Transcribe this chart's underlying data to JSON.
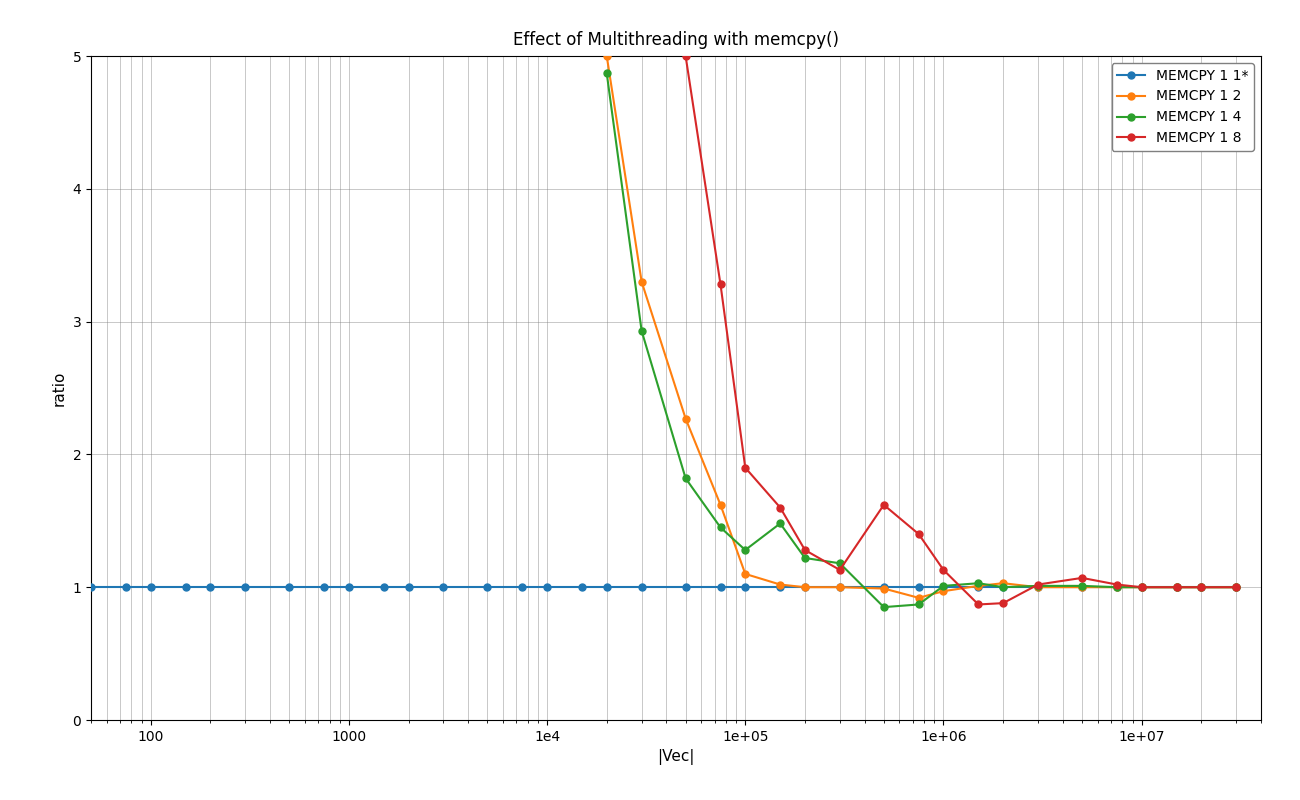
{
  "title": "Effect of Multithreading with memcpy()",
  "xlabel": "|Vec|",
  "ylabel": "ratio",
  "series": [
    {
      "label": "MEMCPY 1 1*",
      "color": "#1f77b4",
      "x": [
        50,
        75,
        100,
        150,
        200,
        300,
        500,
        750,
        1000,
        1500,
        2000,
        3000,
        5000,
        7500,
        10000,
        15000,
        20000,
        30000,
        50000,
        75000,
        100000,
        150000,
        200000,
        300000,
        500000,
        750000,
        1000000,
        1500000,
        2000000,
        3000000,
        5000000,
        7500000,
        10000000,
        15000000,
        20000000,
        30000000
      ],
      "y": [
        1.0,
        1.0,
        1.0,
        1.0,
        1.0,
        1.0,
        1.0,
        1.0,
        1.0,
        1.0,
        1.0,
        1.0,
        1.0,
        1.0,
        1.0,
        1.0,
        1.0,
        1.0,
        1.0,
        1.0,
        1.0,
        1.0,
        1.0,
        1.0,
        1.0,
        1.0,
        1.0,
        1.0,
        1.0,
        1.0,
        1.0,
        1.0,
        1.0,
        1.0,
        1.0,
        1.0
      ]
    },
    {
      "label": "MEMCPY 1 2",
      "color": "#ff7f0e",
      "x": [
        20000,
        30000,
        50000,
        75000,
        100000,
        150000,
        200000,
        300000,
        500000,
        750000,
        1000000,
        1500000,
        2000000,
        3000000,
        5000000,
        7500000,
        10000000,
        15000000,
        20000000,
        30000000
      ],
      "y": [
        5.0,
        3.3,
        2.27,
        1.62,
        1.1,
        1.02,
        1.0,
        1.0,
        0.99,
        0.92,
        0.97,
        1.01,
        1.03,
        1.0,
        1.0,
        1.0,
        1.0,
        1.0,
        1.0,
        1.0
      ]
    },
    {
      "label": "MEMCPY 1 4",
      "color": "#2ca02c",
      "x": [
        20000,
        30000,
        50000,
        75000,
        100000,
        150000,
        200000,
        300000,
        500000,
        750000,
        1000000,
        1500000,
        2000000,
        3000000,
        5000000,
        7500000,
        10000000,
        15000000,
        20000000,
        30000000
      ],
      "y": [
        4.87,
        2.93,
        1.82,
        1.45,
        1.28,
        1.48,
        1.22,
        1.18,
        0.85,
        0.87,
        1.01,
        1.03,
        1.0,
        1.01,
        1.01,
        1.0,
        1.0,
        1.0,
        1.0,
        1.0
      ]
    },
    {
      "label": "MEMCPY 1 8",
      "color": "#d62728",
      "x": [
        50000,
        75000,
        100000,
        150000,
        200000,
        300000,
        500000,
        750000,
        1000000,
        1500000,
        2000000,
        3000000,
        5000000,
        7500000,
        10000000,
        15000000,
        20000000,
        30000000
      ],
      "y": [
        5.0,
        3.28,
        1.9,
        1.6,
        1.28,
        1.13,
        1.62,
        1.4,
        1.13,
        0.87,
        0.88,
        1.02,
        1.07,
        1.02,
        1.0,
        1.0,
        1.0,
        1.0
      ]
    }
  ],
  "xlim_left": 50,
  "xlim_right": 40000000,
  "ylim": [
    0,
    5
  ],
  "yticks": [
    0,
    1,
    2,
    3,
    4,
    5
  ],
  "grid": true,
  "legend_loc": "upper right",
  "figsize": [
    13.0,
    8.0
  ],
  "dpi": 100,
  "bg_color": "#ffffff"
}
